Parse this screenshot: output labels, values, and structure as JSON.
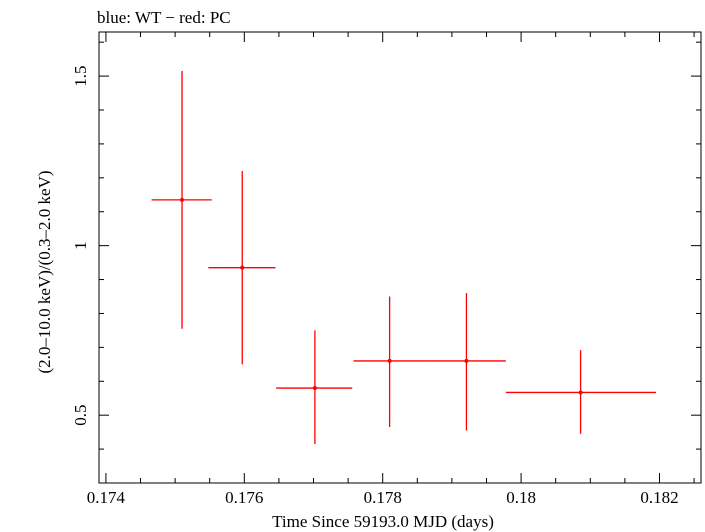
{
  "chart_data": {
    "type": "scatter",
    "title": "blue: WT − red: PC",
    "xlabel": "Time Since 59193.0 MJD (days)",
    "ylabel": "(2.0–10.0 keV)/(0.3–2.0 keV)",
    "xlim": [
      0.1739,
      0.1826
    ],
    "ylim": [
      0.3,
      1.63
    ],
    "x_ticks": [
      0.174,
      0.176,
      0.178,
      0.18,
      0.182
    ],
    "x_tick_labels": [
      "0.174",
      "0.176",
      "0.178",
      "0.18",
      "0.182"
    ],
    "y_ticks": [
      0.5,
      1.0,
      1.5
    ],
    "y_tick_labels": [
      "0.5",
      "1",
      "1.5"
    ],
    "grid": false,
    "series": [
      {
        "name": "PC",
        "color": "#ff0000",
        "points": [
          {
            "x": 0.1751,
            "xerr": [
              0.00044,
              0.00043
            ],
            "y": 1.135,
            "yerr": [
              0.38,
              0.38
            ]
          },
          {
            "x": 0.17597,
            "xerr": [
              0.00049,
              0.00048
            ],
            "y": 0.935,
            "yerr": [
              0.285,
              0.285
            ]
          },
          {
            "x": 0.17702,
            "xerr": [
              0.00056,
              0.00054
            ],
            "y": 0.58,
            "yerr": [
              0.165,
              0.17
            ]
          },
          {
            "x": 0.1781,
            "xerr": [
              0.00052,
              0.00054
            ],
            "y": 0.66,
            "yerr": [
              0.195,
              0.19
            ]
          },
          {
            "x": 0.17921,
            "xerr": [
              0.00057,
              0.00057
            ],
            "y": 0.66,
            "yerr": [
              0.205,
              0.2
            ]
          },
          {
            "x": 0.18086,
            "xerr": [
              0.00108,
              0.00109
            ],
            "y": 0.567,
            "yerr": [
              0.122,
              0.125
            ]
          }
        ]
      }
    ]
  }
}
